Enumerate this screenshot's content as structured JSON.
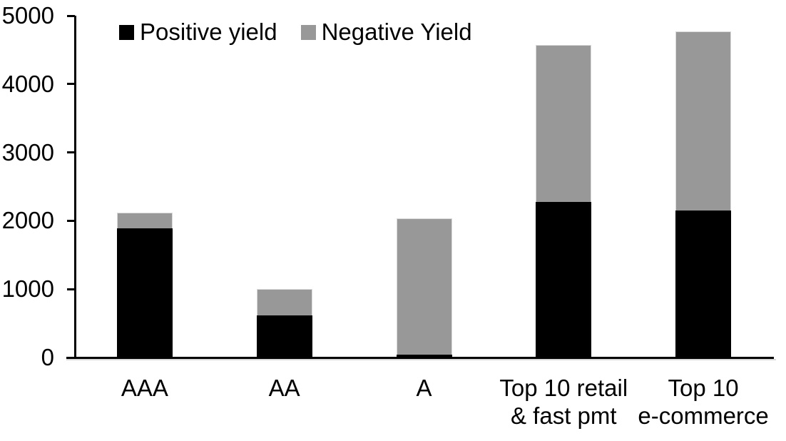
{
  "legend": {
    "items": [
      {
        "name": "positive-yield",
        "label": "Positive yield",
        "color": "#000000"
      },
      {
        "name": "negative-yield",
        "label": "Negative Yield",
        "color": "#989898"
      }
    ]
  },
  "axes": {
    "y_tick_labels": [
      "0",
      "1000",
      "2000",
      "3000",
      "4000",
      "5000"
    ]
  },
  "chart_data": {
    "type": "bar",
    "stacked": true,
    "title": "",
    "xlabel": "",
    "ylabel": "",
    "ylim": [
      0,
      5000
    ],
    "y_ticks": [
      0,
      1000,
      2000,
      3000,
      4000,
      5000
    ],
    "grid": false,
    "legend_position": "top",
    "categories": [
      "AAA",
      "AA",
      "A",
      "Top 10 retail\n& fast pmt",
      "Top 10\ne-commerce"
    ],
    "series": [
      {
        "name": "Positive yield",
        "color": "#000000",
        "values": [
          1890,
          620,
          40,
          2280,
          2150
        ]
      },
      {
        "name": "Negative Yield",
        "color": "#989898",
        "values": [
          230,
          380,
          2000,
          2290,
          2620
        ]
      }
    ],
    "totals": [
      2120,
      1000,
      2040,
      4570,
      4770
    ]
  }
}
